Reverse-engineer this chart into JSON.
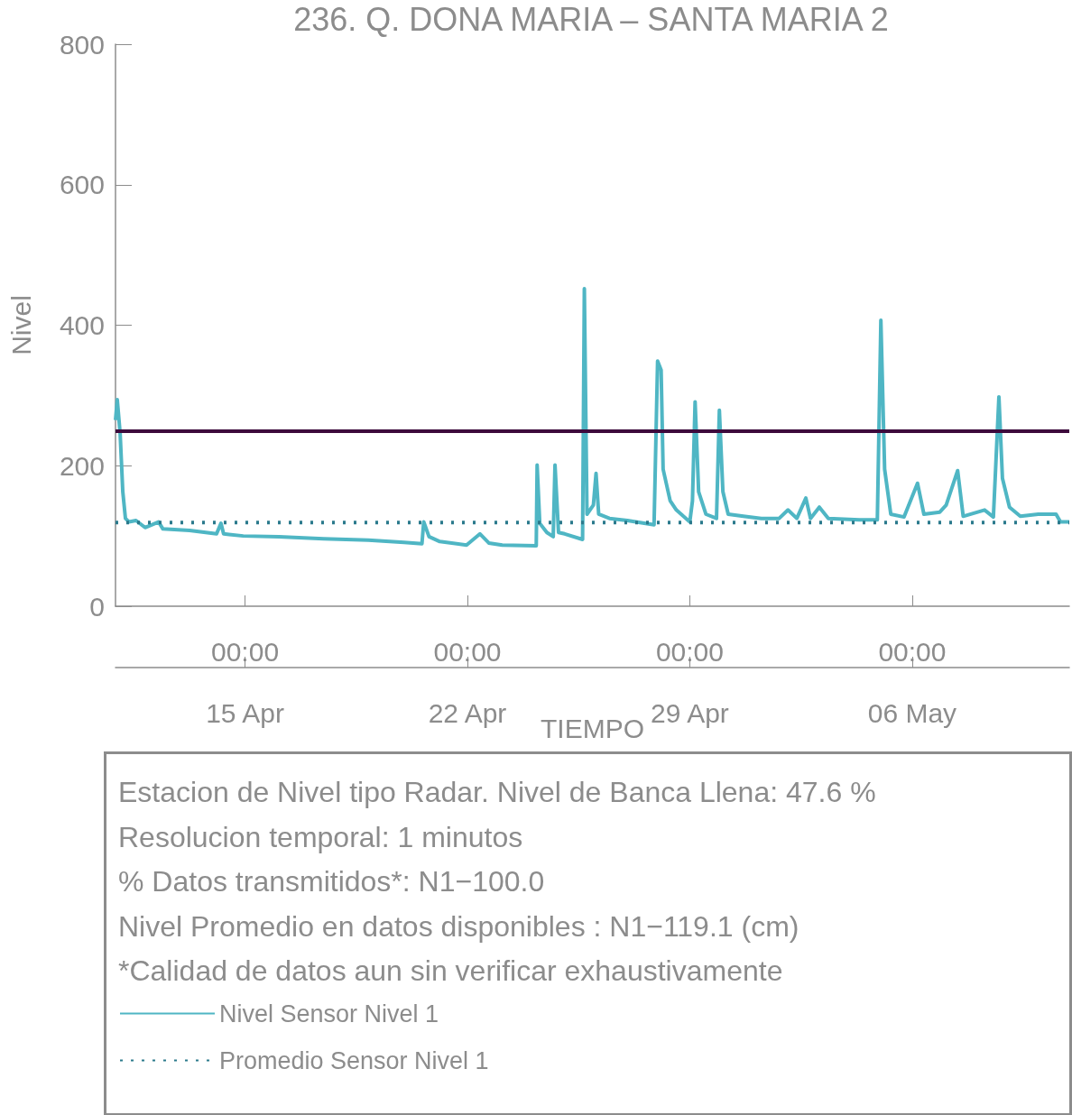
{
  "chart_data": {
    "type": "line",
    "title": "236. Q. DONA MARIA – SANTA MARIA 2",
    "xlabel": "TIEMPO",
    "ylabel": "Nivel",
    "annotations": [
      "Estacion de Nivel tipo Radar. Nivel de Banca Llena: 47.6 %",
      "Resolucion temporal: 1 minutos",
      "% Datos transmitidos*: N1−100.0",
      "Nivel Promedio en datos disponibles : N1−119.1 (cm)",
      "*Calidad de datos aun sin verificar exhaustivamente"
    ],
    "xlim": [
      "--04-10T22:10",
      "--05-10T22:40"
    ],
    "xticks": [
      {
        "value": "--04-15T00:00",
        "label": "00:00\n15 Apr"
      },
      {
        "value": "--04-22T00:00",
        "label": "00:00\n22 Apr"
      },
      {
        "value": "--04-29T00:00",
        "label": "00:00\n29 Apr"
      },
      {
        "value": "--05-06T00:00",
        "label": "00:00\n06 May"
      }
    ],
    "ylim": [
      0,
      800
    ],
    "yticks": [
      0,
      200,
      400,
      600,
      800
    ],
    "grid": false,
    "legend": "bottom",
    "marker": "none",
    "ref_lines": [
      {
        "axis": "y",
        "value": 250,
        "color": "#3d0a3c"
      }
    ],
    "series": [
      {
        "name": "Nivel Sensor Nivel 1",
        "color": "#4fb6c4",
        "line_style": "solid",
        "x": [
          "--04-10T22:10",
          "--04-10T23:30",
          "--04-11T01:40",
          "--04-11T03:40",
          "--04-11T05:40",
          "--04-11T08:20",
          "--04-11T13:40",
          "--04-11T20:30",
          "--04-12T06:40",
          "--04-12T10:00",
          "--04-13T06:10",
          "--04-14T02:30",
          "--04-14T05:50",
          "--04-14T07:50",
          "--04-14T22:40",
          "--04-16T01:40",
          "--04-17T11:30",
          "--04-18T21:10",
          "--04-20T00:10",
          "--04-20T13:40",
          "--04-20T15:00",
          "--04-20T19:00",
          "--04-21T03:10",
          "--04-21T23:20",
          "--04-22T09:30",
          "--04-22T16:10",
          "--04-23T02:20",
          "--04-24T04:00",
          "--04-24T04:40",
          "--04-24T06:40",
          "--04-24T12:00",
          "--04-24T16:50",
          "--04-24T18:10",
          "--04-24T20:50",
          "--04-25T01:30",
          "--04-25T15:00",
          "--04-25T16:20",
          "--04-25T18:20",
          "--04-25T23:10",
          "--04-26T01:10",
          "--04-26T03:10",
          "--04-26T11:20",
          "--04-27T00:50",
          "--04-27T21:00",
          "--04-27T23:40",
          "--04-28T02:20",
          "--04-28T03:50",
          "--04-28T09:10",
          "--04-28T13:50",
          "--04-29T00:00",
          "--04-29T02:00",
          "--04-29T04:00",
          "--04-29T06:40",
          "--04-29T12:10",
          "--04-29T20:10",
          "--04-29T22:20",
          "--04-30T01:00",
          "--04-30T05:00",
          "--04-30T16:30",
          "--05-01T06:00",
          "--05-01T19:30",
          "--05-02T02:10",
          "--05-02T08:50",
          "--05-02T15:40",
          "--05-02T19:10",
          "--05-03T01:50",
          "--05-03T08:40",
          "--05-04T08:10",
          "--05-04T21:40",
          "--05-05T00:20",
          "--05-05T03:10",
          "--05-05T07:50",
          "--05-05T17:50",
          "--05-06T04:00",
          "--05-06T08:50",
          "--05-06T20:50",
          "--05-07T01:40",
          "--05-07T10:20",
          "--05-07T14:30",
          "--05-08T06:40",
          "--05-08T13:20",
          "--05-08T17:30",
          "--05-08T20:10",
          "--05-09T01:30",
          "--05-09T09:40",
          "--05-09T23:10",
          "--05-10T12:40",
          "--05-10T16:00",
          "--05-10T22:40"
        ],
        "values": [
          265,
          294,
          246,
          163,
          125,
          120,
          122,
          112,
          120,
          110,
          108,
          103,
          118,
          103,
          100,
          99,
          96,
          94,
          91,
          89,
          120,
          99,
          92,
          87,
          103,
          90,
          87,
          86,
          201,
          118,
          105,
          99,
          201,
          105,
          103,
          95,
          452,
          131,
          144,
          189,
          131,
          125,
          122,
          116,
          349,
          336,
          195,
          150,
          137,
          120,
          150,
          291,
          163,
          131,
          125,
          279,
          163,
          131,
          128,
          125,
          125,
          137,
          125,
          154,
          125,
          141,
          125,
          123,
          123,
          407,
          195,
          131,
          127,
          175,
          131,
          134,
          144,
          193,
          128,
          137,
          127,
          298,
          182,
          141,
          128,
          131,
          131,
          120,
          120
        ]
      },
      {
        "name": "Promedio Sensor Nivel 1",
        "color": "#2b7a8c",
        "line_style": "dotted",
        "x": [
          "--04-10T22:10",
          "--05-10T22:40"
        ],
        "values": [
          119.1,
          119.1
        ]
      }
    ]
  }
}
